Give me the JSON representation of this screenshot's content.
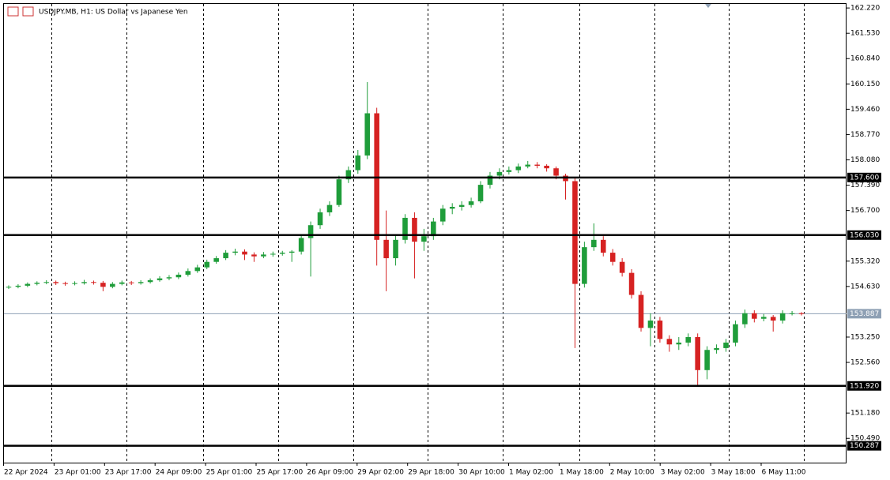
{
  "chart_data": {
    "type": "candlestick",
    "title": "USDJPY.MB, H1:  US Dollar vs Japanese Yen",
    "up_color": "#1f9d3a",
    "down_color": "#d62222",
    "ylim": [
      150.28,
      162.33
    ],
    "yticks": [
      {
        "value": 162.22,
        "label": "162.220"
      },
      {
        "value": 161.53,
        "label": "161.530"
      },
      {
        "value": 160.84,
        "label": "160.840"
      },
      {
        "value": 160.15,
        "label": "160.150"
      },
      {
        "value": 159.46,
        "label": "159.460"
      },
      {
        "value": 158.77,
        "label": "158.770"
      },
      {
        "value": 158.08,
        "label": "158.080"
      },
      {
        "value": 157.39,
        "label": "157.390"
      },
      {
        "value": 156.7,
        "label": "156.700"
      },
      {
        "value": 155.32,
        "label": "155.320"
      },
      {
        "value": 154.63,
        "label": "154.630"
      },
      {
        "value": 153.25,
        "label": "153.250"
      },
      {
        "value": 152.56,
        "label": "152.560"
      },
      {
        "value": 151.18,
        "label": "151.180"
      },
      {
        "value": 150.49,
        "label": "150.490"
      }
    ],
    "x_labels": [
      "22 Apr 2024",
      "23 Apr 01:00",
      "23 Apr 17:00",
      "24 Apr 09:00",
      "25 Apr 01:00",
      "25 Apr 17:00",
      "26 Apr 09:00",
      "29 Apr 02:00",
      "29 Apr 18:00",
      "30 Apr 10:00",
      "1 May 02:00",
      "1 May 18:00",
      "2 May 10:00",
      "3 May 02:00",
      "3 May 18:00",
      "6 May 11:00"
    ],
    "levels": [
      {
        "value": 157.6,
        "label": "157.600"
      },
      {
        "value": 156.03,
        "label": "156.030"
      },
      {
        "value": 151.92,
        "label": "151.920"
      },
      {
        "value": 150.287,
        "label": "150.287"
      }
    ],
    "current_price": {
      "value": 153.887,
      "label": "153.887"
    },
    "candles": [
      [
        154.6,
        154.66,
        154.56,
        154.62
      ],
      [
        154.62,
        154.69,
        154.58,
        154.65
      ],
      [
        154.65,
        154.74,
        154.61,
        154.7
      ],
      [
        154.7,
        154.77,
        154.66,
        154.73
      ],
      [
        154.73,
        154.8,
        154.69,
        154.75
      ],
      [
        154.75,
        154.79,
        154.67,
        154.72
      ],
      [
        154.72,
        154.76,
        154.65,
        154.7
      ],
      [
        154.7,
        154.77,
        154.66,
        154.72
      ],
      [
        154.72,
        154.81,
        154.68,
        154.75
      ],
      [
        154.75,
        154.79,
        154.68,
        154.73
      ],
      [
        154.73,
        154.78,
        154.5,
        154.62
      ],
      [
        154.62,
        154.75,
        154.58,
        154.7
      ],
      [
        154.7,
        154.79,
        154.66,
        154.74
      ],
      [
        154.74,
        154.78,
        154.67,
        154.72
      ],
      [
        154.72,
        154.8,
        154.68,
        154.75
      ],
      [
        154.75,
        154.85,
        154.71,
        154.8
      ],
      [
        154.8,
        154.91,
        154.76,
        154.85
      ],
      [
        154.85,
        154.94,
        154.8,
        154.88
      ],
      [
        154.88,
        155.01,
        154.83,
        154.95
      ],
      [
        154.95,
        155.12,
        154.9,
        155.05
      ],
      [
        155.05,
        155.22,
        155.0,
        155.15
      ],
      [
        155.15,
        155.36,
        155.1,
        155.3
      ],
      [
        155.3,
        155.46,
        155.25,
        155.4
      ],
      [
        155.4,
        155.62,
        155.35,
        155.55
      ],
      [
        155.55,
        155.66,
        155.48,
        155.58
      ],
      [
        155.58,
        155.64,
        155.35,
        155.5
      ],
      [
        155.5,
        155.56,
        155.3,
        155.45
      ],
      [
        155.45,
        155.57,
        155.4,
        155.5
      ],
      [
        155.5,
        155.58,
        155.44,
        155.52
      ],
      [
        155.52,
        155.6,
        155.47,
        155.55
      ],
      [
        155.55,
        155.62,
        155.3,
        155.58
      ],
      [
        155.58,
        156.05,
        155.5,
        155.95
      ],
      [
        155.95,
        156.4,
        154.9,
        156.3
      ],
      [
        156.3,
        156.75,
        156.2,
        156.65
      ],
      [
        156.65,
        156.95,
        156.55,
        156.85
      ],
      [
        156.85,
        157.65,
        156.8,
        157.55
      ],
      [
        157.55,
        157.9,
        157.45,
        157.8
      ],
      [
        157.8,
        158.35,
        157.7,
        158.2
      ],
      [
        158.2,
        160.2,
        158.1,
        159.35
      ],
      [
        159.35,
        159.5,
        155.2,
        155.9
      ],
      [
        155.9,
        156.7,
        154.5,
        155.4
      ],
      [
        155.4,
        156.05,
        155.2,
        155.9
      ],
      [
        155.9,
        156.6,
        155.8,
        156.5
      ],
      [
        156.5,
        156.65,
        154.85,
        155.85
      ],
      [
        155.85,
        156.2,
        155.6,
        156.0
      ],
      [
        156.0,
        156.5,
        155.9,
        156.4
      ],
      [
        156.4,
        156.85,
        156.3,
        156.75
      ],
      [
        156.75,
        156.9,
        156.6,
        156.8
      ],
      [
        156.8,
        156.95,
        156.7,
        156.85
      ],
      [
        156.85,
        157.05,
        156.78,
        156.95
      ],
      [
        156.95,
        157.5,
        156.9,
        157.4
      ],
      [
        157.4,
        157.75,
        157.3,
        157.65
      ],
      [
        157.65,
        157.85,
        157.55,
        157.75
      ],
      [
        157.75,
        157.9,
        157.68,
        157.8
      ],
      [
        157.8,
        157.98,
        157.72,
        157.9
      ],
      [
        157.9,
        158.05,
        157.85,
        157.95
      ],
      [
        157.95,
        158.02,
        157.85,
        157.92
      ],
      [
        157.92,
        157.96,
        157.76,
        157.85
      ],
      [
        157.85,
        157.9,
        157.55,
        157.65
      ],
      [
        157.65,
        157.7,
        157.0,
        157.5
      ],
      [
        157.5,
        157.6,
        152.95,
        154.7
      ],
      [
        154.7,
        155.85,
        154.6,
        155.7
      ],
      [
        155.7,
        156.35,
        155.6,
        155.9
      ],
      [
        155.9,
        156.0,
        155.45,
        155.55
      ],
      [
        155.55,
        155.65,
        155.2,
        155.3
      ],
      [
        155.3,
        155.4,
        154.9,
        155.0
      ],
      [
        155.0,
        155.1,
        154.3,
        154.4
      ],
      [
        154.4,
        154.5,
        153.4,
        153.5
      ],
      [
        153.5,
        153.9,
        153.0,
        153.7
      ],
      [
        153.7,
        153.8,
        153.1,
        153.2
      ],
      [
        153.2,
        153.3,
        152.85,
        153.05
      ],
      [
        153.05,
        153.25,
        152.9,
        153.1
      ],
      [
        153.1,
        153.35,
        153.0,
        153.25
      ],
      [
        153.25,
        153.35,
        151.9,
        152.35
      ],
      [
        152.35,
        153.0,
        152.1,
        152.9
      ],
      [
        152.9,
        153.05,
        152.8,
        152.95
      ],
      [
        152.95,
        153.2,
        152.85,
        153.1
      ],
      [
        153.1,
        153.7,
        153.0,
        153.6
      ],
      [
        153.6,
        154.0,
        153.5,
        153.9
      ],
      [
        153.9,
        153.98,
        153.65,
        153.75
      ],
      [
        153.75,
        153.88,
        153.68,
        153.8
      ],
      [
        153.8,
        153.85,
        153.4,
        153.7
      ],
      [
        153.7,
        153.98,
        153.62,
        153.9
      ],
      [
        153.9,
        153.96,
        153.84,
        153.9
      ],
      [
        153.9,
        153.93,
        153.84,
        153.887
      ]
    ]
  }
}
